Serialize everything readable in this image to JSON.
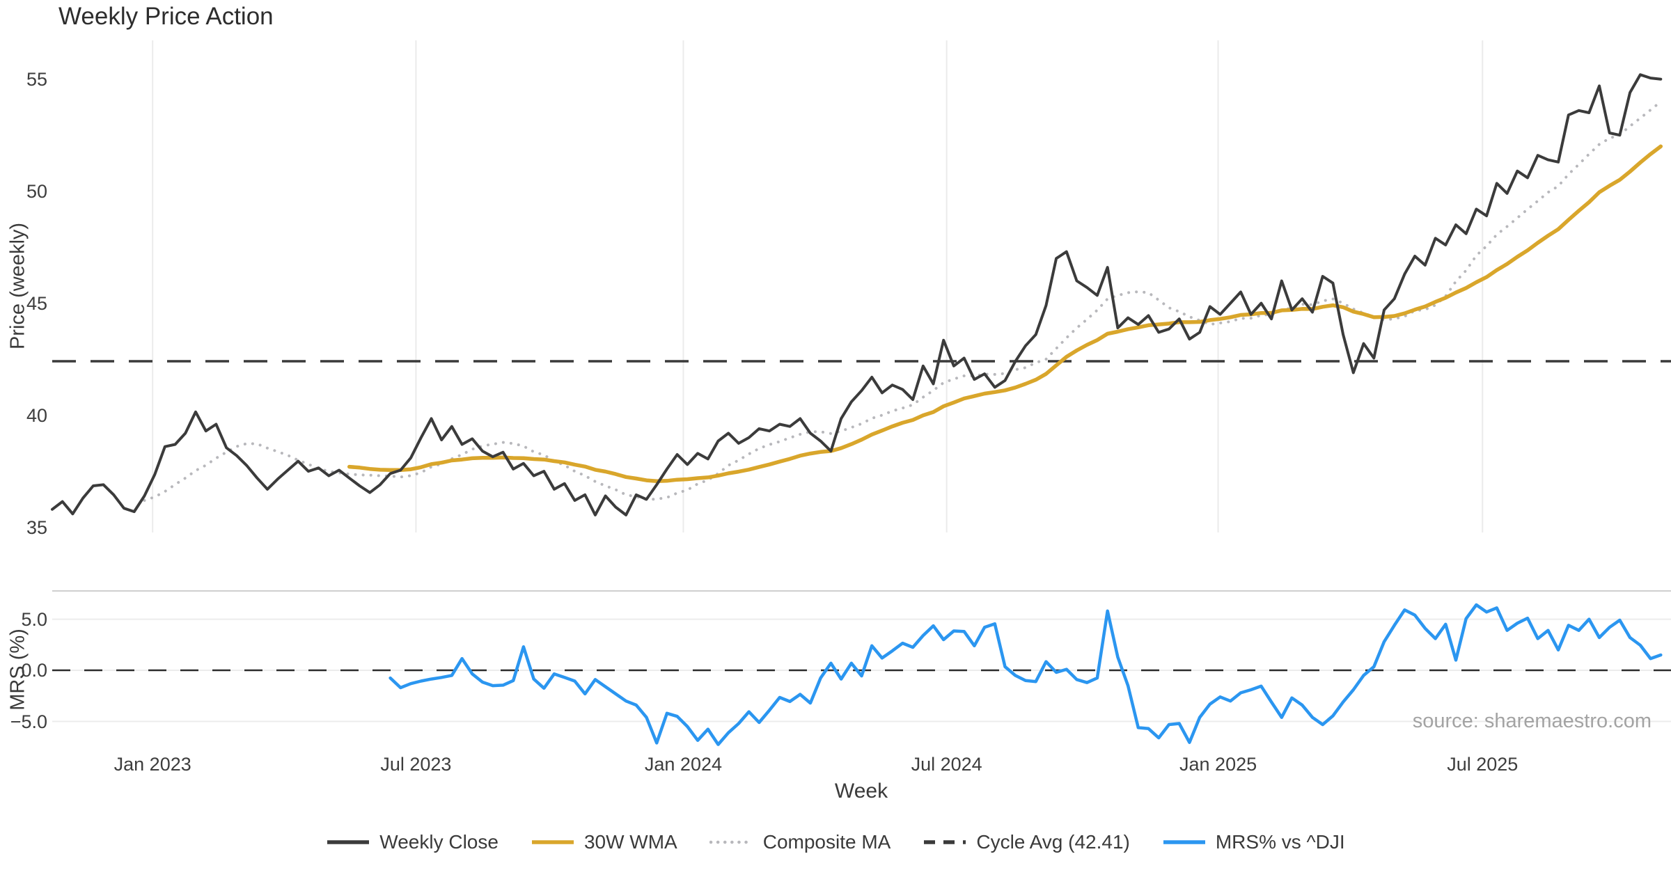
{
  "page": {
    "title": "Weekly Price Action",
    "source_credit": "source: sharemaestro.com"
  },
  "axes": {
    "x_label": "Week",
    "price_y_label": "Price (weekly)",
    "mrs_y_label": "MRS (%)"
  },
  "x_axis": {
    "tick_labels": [
      "Jan 2023",
      "Jul 2023",
      "Jan 2024",
      "Jul 2024",
      "Jan 2025",
      "Jul 2025"
    ],
    "tick_week_positions": [
      9.8,
      35.5,
      61.6,
      87.3,
      113.8,
      139.6
    ]
  },
  "colors": {
    "weekly_close": "#3b3b3b",
    "wma": "#d9a62b",
    "composite": "#b8b8bc",
    "cycle_avg": "#3a3a3a",
    "mrs": "#2b96f0",
    "grid_vertical": "#ebebeb",
    "grid_horizontal": "#ececec",
    "panel_border": "#cfcfcf",
    "zero_dash": "#2b2b2b",
    "tick_text": "#3d3d3d"
  },
  "legend": [
    {
      "label": "Weekly Close",
      "color": "#3b3b3b",
      "style": "solid"
    },
    {
      "label": "30W WMA",
      "color": "#d9a62b",
      "style": "solid"
    },
    {
      "label": "Composite MA",
      "color": "#b8b8bc",
      "style": "dotted"
    },
    {
      "label": "Cycle Avg (42.41)",
      "color": "#3a3a3a",
      "style": "dashed"
    },
    {
      "label": "MRS% vs ^DJI",
      "color": "#2b96f0",
      "style": "solid"
    }
  ],
  "weeks_total": 158,
  "chart_data": [
    {
      "type": "line",
      "panel": "price",
      "title": "Weekly Price Action",
      "xlabel": "Week",
      "ylabel": "Price (weekly)",
      "ylim": [
        34.77,
        56.73
      ],
      "y_tick_values": [
        35,
        40,
        45,
        50,
        55
      ],
      "y_tick_labels": [
        "35",
        "40",
        "45",
        "50",
        "55"
      ],
      "grid": "vertical-only",
      "legend_position": "bottom-center",
      "series": [
        {
          "name": "Weekly Close",
          "color": "#3b3b3b",
          "style": "solid",
          "start_week": 0,
          "values": [
            35.8,
            36.15,
            35.6,
            36.3,
            36.85,
            36.9,
            36.45,
            35.85,
            35.7,
            36.4,
            37.35,
            38.6,
            38.7,
            39.2,
            40.15,
            39.3,
            39.6,
            38.55,
            38.2,
            37.75,
            37.2,
            36.7,
            37.15,
            37.55,
            37.95,
            37.5,
            37.65,
            37.3,
            37.55,
            37.2,
            36.85,
            36.55,
            36.9,
            37.4,
            37.55,
            38.1,
            39.0,
            39.85,
            38.9,
            39.5,
            38.7,
            38.95,
            38.4,
            38.15,
            38.35,
            37.6,
            37.85,
            37.3,
            37.5,
            36.7,
            36.95,
            36.2,
            36.45,
            35.55,
            36.4,
            35.9,
            35.55,
            36.45,
            36.25,
            36.9,
            37.6,
            38.25,
            37.8,
            38.3,
            38.05,
            38.85,
            39.2,
            38.75,
            39.0,
            39.4,
            39.3,
            39.6,
            39.5,
            39.85,
            39.2,
            38.85,
            38.4,
            39.85,
            40.6,
            41.1,
            41.7,
            41.0,
            41.35,
            41.15,
            40.7,
            42.2,
            41.4,
            43.35,
            42.2,
            42.55,
            41.6,
            41.85,
            41.25,
            41.55,
            42.4,
            43.1,
            43.6,
            44.9,
            47.0,
            47.3,
            46.0,
            45.7,
            45.35,
            46.6,
            43.9,
            44.35,
            44.05,
            44.45,
            43.7,
            43.85,
            44.3,
            43.4,
            43.7,
            44.85,
            44.5,
            45.0,
            45.5,
            44.5,
            45.0,
            44.3,
            46.0,
            44.7,
            45.2,
            44.6,
            46.2,
            45.9,
            43.6,
            41.9,
            43.2,
            42.55,
            44.7,
            45.2,
            46.3,
            47.1,
            46.7,
            47.9,
            47.6,
            48.5,
            48.1,
            49.2,
            48.9,
            50.35,
            49.9,
            50.9,
            50.6,
            51.6,
            51.4,
            51.3,
            53.4,
            53.6,
            53.5,
            54.7,
            52.6,
            52.5,
            54.4,
            55.2,
            55.05,
            55.0
          ]
        },
        {
          "name": "30W WMA",
          "color": "#d9a62b",
          "style": "solid",
          "derived": "weighted_ma_of_weekly_close",
          "window": 30
        },
        {
          "name": "Composite MA",
          "color": "#b8b8bc",
          "style": "dotted",
          "derived": "sma_of_weekly_close",
          "window": 10
        },
        {
          "name": "Cycle Avg (42.41)",
          "color": "#3a3a3a",
          "style": "dashed",
          "constant": 42.41
        }
      ]
    },
    {
      "type": "line",
      "panel": "mrs",
      "ylabel": "MRS (%)",
      "ylim": [
        -7.82,
        7.76
      ],
      "y_tick_values": [
        5.0,
        0.0,
        -5.0
      ],
      "y_tick_labels": [
        "5.0",
        "0.0",
        "−5.0"
      ],
      "zero_line": 0.0,
      "grid": "horizontal-only",
      "series": [
        {
          "name": "MRS% vs ^DJI",
          "color": "#2b96f0",
          "style": "solid",
          "start_week": 33,
          "values": [
            -0.75,
            -1.7,
            -1.3,
            -1.05,
            -0.85,
            -0.7,
            -0.5,
            1.15,
            -0.35,
            -1.15,
            -1.5,
            -1.45,
            -1.0,
            2.3,
            -0.85,
            -1.75,
            -0.35,
            -0.7,
            -1.05,
            -2.3,
            -0.9,
            -1.6,
            -2.3,
            -3.0,
            -3.4,
            -4.6,
            -7.1,
            -4.2,
            -4.5,
            -5.5,
            -6.85,
            -5.75,
            -7.25,
            -6.1,
            -5.2,
            -4.05,
            -5.1,
            -3.9,
            -2.65,
            -3.05,
            -2.35,
            -3.2,
            -0.75,
            0.7,
            -0.85,
            0.7,
            -0.55,
            2.4,
            1.2,
            1.9,
            2.65,
            2.25,
            3.4,
            4.35,
            3.0,
            3.85,
            3.8,
            2.4,
            4.2,
            4.55,
            0.35,
            -0.5,
            -1.0,
            -1.1,
            0.85,
            -0.2,
            0.1,
            -0.9,
            -1.2,
            -0.75,
            5.8,
            1.3,
            -1.5,
            -5.6,
            -5.7,
            -6.6,
            -5.3,
            -5.2,
            -7.05,
            -4.6,
            -3.3,
            -2.6,
            -3.0,
            -2.2,
            -1.9,
            -1.55,
            -3.1,
            -4.6,
            -2.7,
            -3.4,
            -4.6,
            -5.3,
            -4.45,
            -3.1,
            -1.9,
            -0.5,
            0.35,
            2.8,
            4.4,
            5.9,
            5.4,
            4.1,
            3.1,
            4.5,
            1.0,
            5.05,
            6.4,
            5.7,
            6.1,
            3.9,
            4.6,
            5.1,
            3.1,
            3.9,
            2.0,
            4.4,
            3.9,
            5.0,
            3.2,
            4.2,
            4.9,
            3.2,
            2.45,
            1.15,
            1.5
          ]
        }
      ]
    }
  ]
}
